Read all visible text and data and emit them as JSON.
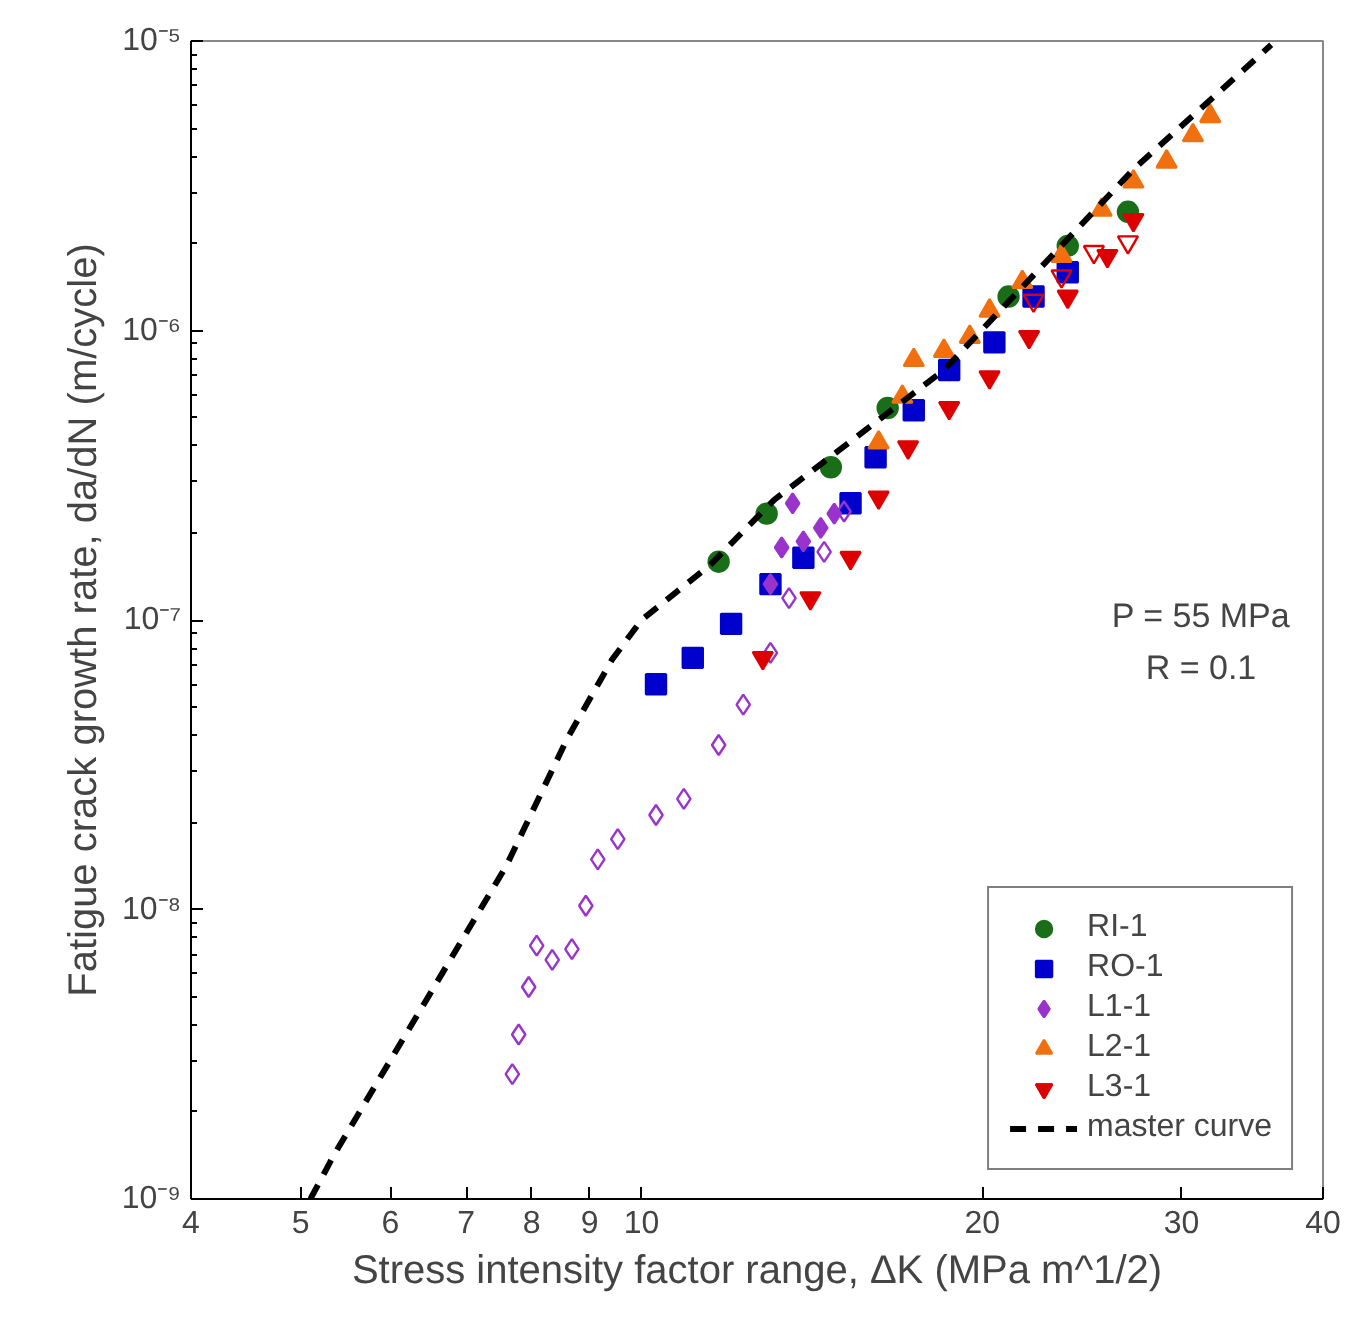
{
  "chart_data": {
    "type": "scatter",
    "xlabel": "Stress intensity factor range, ΔK (MPa m^1/2)",
    "ylabel": "Fatigue crack growth rate, da/dN (m/cycle)",
    "annotations": [
      "P = 55 MPa",
      "R = 0.1"
    ],
    "log": "xy",
    "grid": false,
    "legend": "bottom right",
    "xlim": [
      4,
      40
    ],
    "xticks": [
      4,
      5,
      6,
      7,
      8,
      9,
      10,
      20,
      30,
      40
    ],
    "ylim": [
      1e-09,
      1e-05
    ],
    "yticks": [
      {
        "value": 1e-09,
        "label": "10⁻⁹"
      },
      {
        "value": 1e-08,
        "label": "10⁻⁸"
      },
      {
        "value": 1e-07,
        "label": "10⁻⁷"
      },
      {
        "value": 1e-06,
        "label": "10⁻⁶"
      },
      {
        "value": 1e-05,
        "label": "10⁻⁵"
      }
    ],
    "series": [
      {
        "name": "RI-1",
        "color": "#1a6e1a",
        "marker": "circle",
        "x": [
          11.7,
          12.9,
          14.7,
          16.5,
          18.7,
          21.1,
          23.8,
          26.9
        ],
        "values": [
          1.59e-07,
          2.33e-07,
          3.37e-07,
          5.4e-07,
          null,
          1.31e-06,
          1.96e-06,
          2.57e-06
        ]
      },
      {
        "name": "RO-1",
        "color": "#0000cc",
        "marker": "square",
        "x": [
          10.3,
          11.1,
          12.0,
          13.0,
          13.9,
          15.3,
          16.1,
          17.4,
          18.7,
          20.5,
          22.2,
          23.8
        ],
        "values": [
          6e-08,
          7.4e-08,
          9.7e-08,
          1.33e-07,
          1.64e-07,
          2.53e-07,
          3.65e-07,
          5.3e-07,
          7.3e-07,
          9.1e-07,
          1.31e-06,
          1.59e-06
        ]
      },
      {
        "name": "L1-1",
        "color": "#9933cc",
        "marker": "diamond",
        "x": [
          13.0,
          13.3,
          13.6,
          13.9,
          14.4,
          14.8
        ],
        "values": [
          1.33e-07,
          1.78e-07,
          2.53e-07,
          1.87e-07,
          2.08e-07,
          2.33e-07
        ]
      },
      {
        "color": "#9933cc",
        "marker": "diamond",
        "x": [
          7.69,
          7.79,
          7.95,
          8.08,
          8.34,
          8.68,
          8.93,
          9.15,
          9.53,
          10.3,
          10.9,
          11.7,
          12.3,
          13.0,
          13.5,
          14.5,
          15.1
        ],
        "values": [
          2.7e-09,
          3.7e-09,
          5.4e-09,
          7.5e-09,
          6.7e-09,
          7.3e-09,
          1.03e-08,
          1.49e-08,
          1.75e-08,
          2.12e-08,
          2.41e-08,
          3.7e-08,
          5.1e-08,
          7.7e-08,
          1.19e-07,
          1.72e-07,
          2.37e-07
        ]
      },
      {
        "name": "L2-1",
        "color": "#f07010",
        "marker": "triangle",
        "x": [
          16.2,
          17.0,
          17.4,
          18.5,
          19.5,
          20.3,
          21.7,
          23.5,
          25.5,
          27.2,
          29.1,
          30.7,
          31.8
        ],
        "values": [
          4.1e-07,
          5.9e-07,
          7.9e-07,
          8.5e-07,
          9.5e-07,
          1.17e-06,
          1.47e-06,
          1.81e-06,
          2.61e-06,
          3.27e-06,
          3.83e-06,
          4.72e-06,
          5.5e-06
        ]
      },
      {
        "name": "L3-1",
        "color": "#dd0000",
        "x": [
          12.8,
          14.1,
          15.3,
          16.2,
          17.2,
          18.7,
          20.3,
          22.0,
          23.8,
          25.8,
          27.2
        ],
        "values": [
          7.4e-08,
          1.19e-07,
          1.64e-07,
          2.65e-07,
          3.95e-07,
          5.4e-07,
          6.9e-07,
          9.5e-07,
          1.31e-06,
          1.81e-06,
          2.41e-06
        ]
      },
      {
        "color": "#dd0000",
        "x": [
          22.2,
          23.5,
          25.1,
          26.9
        ],
        "values": [
          1.27e-06,
          1.54e-06,
          1.87e-06,
          2.02e-06
        ]
      },
      {
        "name": "master curve",
        "type": "line",
        "line_style": "dashed",
        "color": "#000000",
        "x": [
          5.1,
          5.35,
          7.6,
          8.6,
          9.42,
          10.0,
          11.5,
          13.1,
          18.5,
          27.2,
          36.0
        ],
        "values": [
          1e-09,
          1.42e-09,
          1.42e-08,
          3.9e-08,
          7.3e-08,
          1e-07,
          1.55e-07,
          2.6e-07,
          7.3e-07,
          3.6e-06,
          9.7e-06
        ]
      }
    ]
  }
}
